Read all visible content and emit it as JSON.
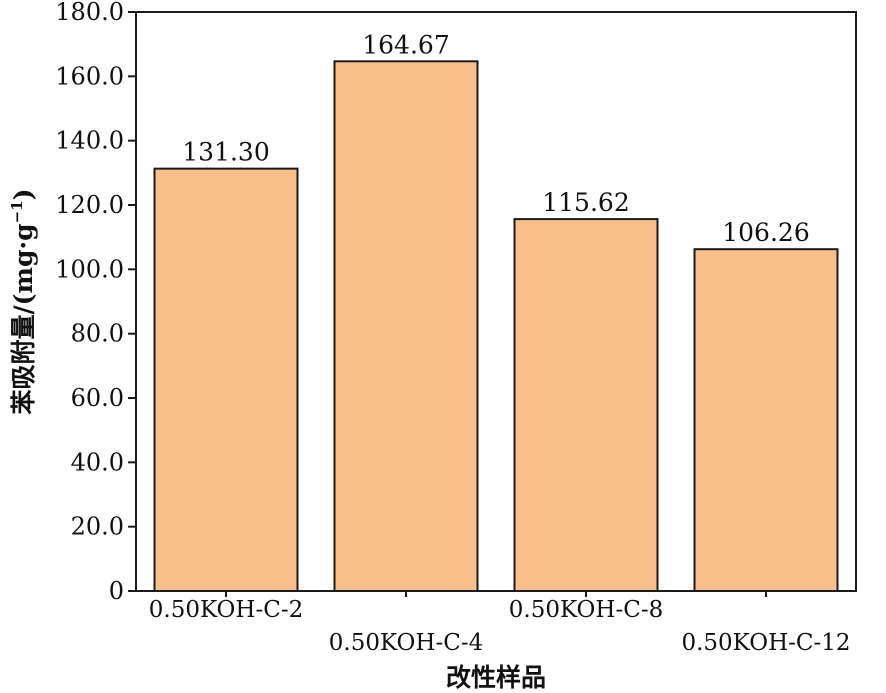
{
  "chart_data": {
    "type": "bar",
    "categories": [
      "0.50KOH-C-2",
      "0.50KOH-C-4",
      "0.50KOH-C-8",
      "0.50KOH-C-12"
    ],
    "values": [
      131.3,
      164.67,
      115.62,
      106.26
    ],
    "value_labels": [
      "131.30",
      "164.67",
      "115.62",
      "106.26"
    ],
    "ylim": [
      0,
      180
    ],
    "yticks": [
      0,
      20,
      40,
      60,
      80,
      100,
      120,
      140,
      160,
      180
    ],
    "ytick_labels": [
      "0",
      "20.0",
      "40.0",
      "60.0",
      "80.0",
      "100.0",
      "120.0",
      "140.0",
      "160.0",
      "180.0"
    ],
    "xlabel": "改性样品",
    "ylabel": "苯吸附量/(mg·g",
    "ylabel_superscript": "−1",
    "ylabel_suffix": ")",
    "grid": false,
    "legend": "none",
    "colors": {
      "bar_fill": "#F9BF8A",
      "bar_edge": "#1a1a1a",
      "axis": "#1a1a1a"
    }
  }
}
